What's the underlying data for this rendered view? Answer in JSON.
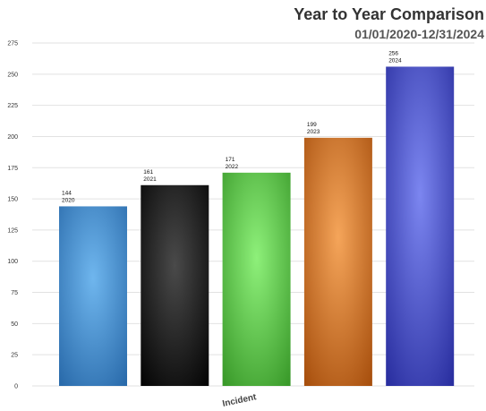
{
  "chart_data": {
    "type": "bar",
    "title": "Year to Year Comparison",
    "subtitle": "01/01/2020-12/31/2024",
    "xlabel": "Incident",
    "ylabel": "",
    "ylim": [
      0,
      275
    ],
    "yticks": [
      0,
      25,
      50,
      75,
      100,
      125,
      150,
      175,
      200,
      225,
      250,
      275
    ],
    "grid": true,
    "categories": [
      "2020",
      "2021",
      "2022",
      "2023",
      "2024"
    ],
    "values": [
      144,
      161,
      171,
      199,
      256
    ],
    "colors": [
      {
        "light": "#6fb6ee",
        "dark": "#2a6bab"
      },
      {
        "light": "#4a4a4a",
        "dark": "#050505"
      },
      {
        "light": "#8ef07a",
        "dark": "#3a9a2a"
      },
      {
        "light": "#f5a55a",
        "dark": "#a8500e"
      },
      {
        "light": "#7c86f0",
        "dark": "#2a2fa0"
      }
    ]
  }
}
